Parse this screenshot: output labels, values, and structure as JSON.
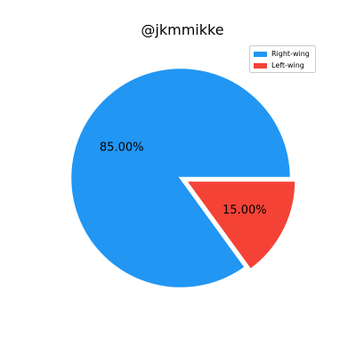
{
  "chart_data": {
    "type": "pie",
    "title": "@jkmmikke",
    "categories": [
      "Right-wing",
      "Left-wing"
    ],
    "values": [
      85.0,
      15.0
    ],
    "labels": [
      "85.00%",
      "15.00%"
    ],
    "colors": [
      "#2196f3",
      "#f44336"
    ],
    "explode": [
      0,
      0.05
    ],
    "start_angle_deg": 0,
    "direction": "counterclockwise",
    "legend": {
      "position": "top-right",
      "entries": [
        "Right-wing",
        "Left-wing"
      ]
    }
  }
}
